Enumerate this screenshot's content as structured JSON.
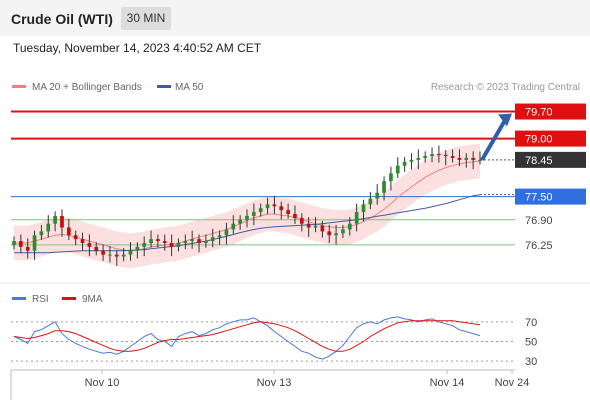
{
  "header": {
    "title": "Crude Oil (WTI)",
    "timeframe": "30 MIN",
    "timestamp": "Tuesday, November 14, 2023 4:40:52 AM CET"
  },
  "colors": {
    "ma20": "#f08080",
    "ma50": "#3a5fa0",
    "band_fill": "#fbd5d5",
    "resistance": "#e01010",
    "support_blue": "#2f6fe0",
    "support_green": "#7fc27f",
    "candle_up": "#2e8b2e",
    "candle_down": "#c01010",
    "rsi": "#4a78d8",
    "rsi_ma": "#e01010",
    "arrow": "#2f5fa8",
    "last_price_bg": "#333333"
  },
  "chart_data": [
    {
      "type": "candlestick",
      "legend": {
        "placement": "top-left",
        "entries": [
          "MA 20 + Bollinger Bands",
          "MA 50"
        ]
      },
      "watermark": "Research © 2023 Trading Central",
      "ylim": [
        75.55,
        80.05
      ],
      "current_price": "78.45",
      "levels": [
        {
          "value": 79.7,
          "label": "79.70",
          "kind": "resistance",
          "boxed": true
        },
        {
          "value": 79.0,
          "label": "79.00",
          "kind": "resistance",
          "boxed": true
        },
        {
          "value": 77.5,
          "label": "77.50",
          "kind": "pivot",
          "boxed": true
        },
        {
          "value": 76.9,
          "label": "76.90",
          "kind": "support",
          "boxed": false
        },
        {
          "value": 76.25,
          "label": "76.25",
          "kind": "support",
          "boxed": false
        }
      ],
      "projection": {
        "from": 78.45,
        "to": 79.7,
        "direction": "up"
      },
      "closes": [
        76.35,
        76.2,
        76.1,
        76.5,
        76.6,
        76.8,
        77.0,
        76.7,
        76.5,
        76.4,
        76.3,
        76.2,
        76.1,
        76.0,
        76.0,
        75.95,
        76.0,
        76.1,
        76.2,
        76.3,
        76.4,
        76.35,
        76.3,
        76.2,
        76.3,
        76.35,
        76.4,
        76.3,
        76.35,
        76.45,
        76.5,
        76.65,
        76.8,
        76.9,
        77.0,
        77.1,
        77.2,
        77.3,
        77.25,
        77.15,
        77.05,
        76.95,
        76.8,
        76.7,
        76.75,
        76.6,
        76.5,
        76.55,
        76.65,
        76.8,
        77.1,
        77.3,
        77.45,
        77.6,
        77.9,
        78.1,
        78.3,
        78.4,
        78.45,
        78.5,
        78.55,
        78.6,
        78.58,
        78.55,
        78.5,
        78.45,
        78.5,
        78.45,
        78.45
      ],
      "ma20": [
        76.3,
        76.3,
        76.3,
        76.35,
        76.4,
        76.45,
        76.5,
        76.52,
        76.5,
        76.45,
        76.4,
        76.35,
        76.3,
        76.25,
        76.2,
        76.15,
        76.12,
        76.1,
        76.12,
        76.15,
        76.2,
        76.22,
        76.25,
        76.27,
        76.3,
        76.35,
        76.4,
        76.45,
        76.5,
        76.55,
        76.6,
        76.65,
        76.72,
        76.8,
        76.88,
        76.95,
        77.0,
        77.05,
        77.05,
        77.02,
        77.0,
        76.95,
        76.9,
        76.85,
        76.8,
        76.75,
        76.72,
        76.7,
        76.7,
        76.72,
        76.78,
        76.85,
        76.95,
        77.05,
        77.18,
        77.32,
        77.48,
        77.62,
        77.75,
        77.88,
        78.0,
        78.1,
        78.18,
        78.25,
        78.3,
        78.35,
        78.38,
        78.4,
        78.42
      ],
      "ma50": [
        76.05,
        76.05,
        76.05,
        76.05,
        76.05,
        76.05,
        76.06,
        76.07,
        76.08,
        76.09,
        76.1,
        76.1,
        76.1,
        76.1,
        76.1,
        76.1,
        76.1,
        76.11,
        76.12,
        76.13,
        76.15,
        76.17,
        76.19,
        76.21,
        76.23,
        76.26,
        76.29,
        76.32,
        76.35,
        76.39,
        76.43,
        76.47,
        76.52,
        76.57,
        76.61,
        76.65,
        76.68,
        76.7,
        76.72,
        76.73,
        76.74,
        76.75,
        76.76,
        76.77,
        76.78,
        76.8,
        76.82,
        76.84,
        76.86,
        76.88,
        76.9,
        76.93,
        76.96,
        76.99,
        77.02,
        77.05,
        77.08,
        77.11,
        77.14,
        77.17,
        77.2,
        77.24,
        77.28,
        77.32,
        77.37,
        77.42,
        77.47,
        77.52,
        77.55
      ],
      "x_ticks": [
        "Nov 10",
        "Nov 13",
        "Nov 14",
        "Nov 24"
      ]
    },
    {
      "type": "line",
      "legend": {
        "placement": "top-left",
        "entries": [
          "RSI",
          "9MA"
        ]
      },
      "ylim": [
        25,
        80
      ],
      "y_ticks": [
        30,
        50,
        70
      ],
      "rsi": [
        55,
        52,
        48,
        60,
        62,
        66,
        70,
        58,
        52,
        48,
        45,
        42,
        40,
        38,
        39,
        37,
        40,
        45,
        50,
        55,
        58,
        52,
        50,
        45,
        55,
        58,
        60,
        56,
        58,
        62,
        64,
        68,
        70,
        72,
        72,
        74,
        70,
        66,
        60,
        55,
        50,
        45,
        40,
        38,
        34,
        32,
        35,
        40,
        46,
        55,
        64,
        68,
        70,
        68,
        72,
        74,
        75,
        73,
        72,
        70,
        72,
        73,
        70,
        68,
        66,
        62,
        60,
        58,
        56
      ],
      "rsi_ma": [
        55,
        54,
        53,
        54,
        56,
        58,
        61,
        61,
        60,
        58,
        55,
        52,
        49,
        46,
        43,
        41,
        40,
        40,
        41,
        43,
        46,
        49,
        51,
        52,
        52,
        53,
        54,
        55,
        56,
        57,
        59,
        61,
        63,
        65,
        67,
        69,
        70,
        69,
        68,
        66,
        64,
        61,
        57,
        53,
        49,
        45,
        42,
        40,
        40,
        42,
        46,
        50,
        55,
        59,
        63,
        66,
        69,
        70,
        71,
        71,
        71,
        71,
        71,
        71,
        71,
        70,
        69,
        68,
        67
      ]
    }
  ]
}
